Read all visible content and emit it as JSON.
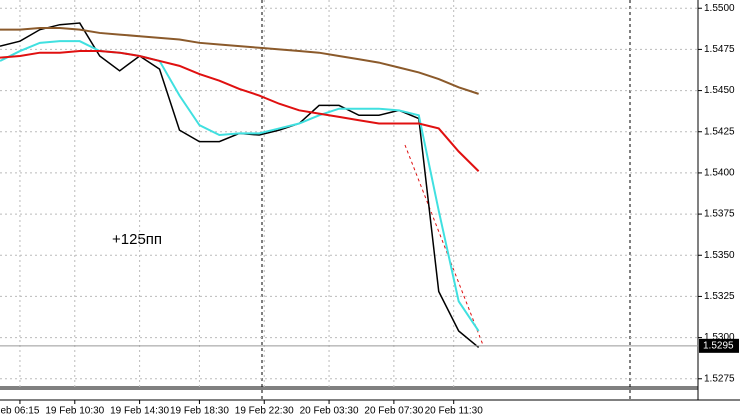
{
  "chart_data": {
    "type": "line",
    "annotation": "+125пп",
    "price_label": {
      "value": 1.5295,
      "label": "1.5295"
    },
    "x": [
      0,
      4,
      8,
      12,
      16,
      20,
      24,
      28,
      32,
      36,
      40,
      44,
      48,
      52,
      56,
      60,
      64,
      68,
      72,
      76,
      80,
      84,
      88,
      92,
      96
    ],
    "series": [
      {
        "color": "#000000",
        "values": [
          1.5477,
          1.548,
          1.5487,
          1.549,
          1.5491,
          1.5471,
          1.5462,
          1.5471,
          1.5463,
          1.5426,
          1.5419,
          1.5419,
          1.5424,
          1.5423,
          1.5426,
          1.543,
          1.5441,
          1.5441,
          1.5435,
          1.5435,
          1.5438,
          1.5433,
          1.5328,
          1.5304,
          1.5294
        ]
      },
      {
        "color": "#40e0e0",
        "values": [
          1.5468,
          1.5474,
          1.5479,
          1.548,
          1.548,
          1.5474,
          1.5473,
          1.5471,
          1.5468,
          1.5447,
          1.5429,
          1.5423,
          1.5424,
          1.5424,
          1.5427,
          1.543,
          1.5435,
          1.5439,
          1.5439,
          1.5439,
          1.5438,
          1.5435,
          1.5377,
          1.5322,
          1.5304
        ]
      },
      {
        "color": "#e01010",
        "values": [
          1.547,
          1.5471,
          1.5473,
          1.5473,
          1.5474,
          1.5474,
          1.5473,
          1.5471,
          1.5468,
          1.5465,
          1.546,
          1.5456,
          1.5451,
          1.5447,
          1.5442,
          1.5438,
          1.5436,
          1.5434,
          1.5432,
          1.543,
          1.543,
          1.543,
          1.5427,
          1.5413,
          1.5401
        ]
      },
      {
        "color": "#8b5a2b",
        "values": [
          1.5487,
          1.5487,
          1.5488,
          1.5488,
          1.5487,
          1.5485,
          1.5484,
          1.5483,
          1.5482,
          1.5481,
          1.5479,
          1.5478,
          1.5477,
          1.5476,
          1.5475,
          1.5474,
          1.5473,
          1.5471,
          1.5469,
          1.5467,
          1.5464,
          1.5461,
          1.5457,
          1.5452,
          1.5448
        ]
      }
    ],
    "xlim": [
      0,
      140
    ],
    "xticks": [
      {
        "value": 4,
        "label": "eb 06:15"
      },
      {
        "value": 15,
        "label": "19 Feb 10:30"
      },
      {
        "value": 28,
        "label": "19 Feb 14:30"
      },
      {
        "value": 40,
        "label": "19 Feb 18:30"
      },
      {
        "value": 53,
        "label": "19 Feb 22:30"
      },
      {
        "value": 66,
        "label": "20 Feb 03:30"
      },
      {
        "value": 79,
        "label": "20 Feb 07:30"
      },
      {
        "value": 91,
        "label": "20 Feb 11:30"
      }
    ],
    "ylim": [
      1.527,
      1.5505
    ],
    "yticks": [
      {
        "value": 1.55,
        "label": "1.5500"
      },
      {
        "value": 1.5475,
        "label": "1.5475"
      },
      {
        "value": 1.545,
        "label": "1.5450"
      },
      {
        "value": 1.5425,
        "label": "1.5425"
      },
      {
        "value": 1.54,
        "label": "1.5400"
      },
      {
        "value": 1.5375,
        "label": "1.5375"
      },
      {
        "value": 1.535,
        "label": "1.5350"
      },
      {
        "value": 1.5325,
        "label": "1.5325"
      },
      {
        "value": 1.53,
        "label": "1.5300"
      },
      {
        "value": 1.5275,
        "label": "1.5275"
      }
    ],
    "grid": true
  }
}
